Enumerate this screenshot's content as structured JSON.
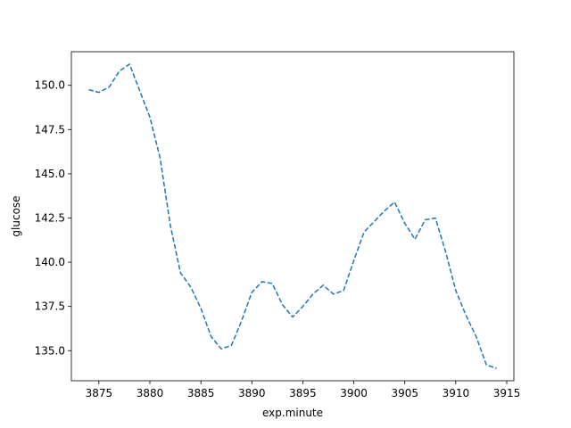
{
  "chart_data": {
    "type": "line",
    "title": "",
    "xlabel": "exp.minute",
    "ylabel": "glucose",
    "xlim": [
      3872.3,
      3915.7
    ],
    "ylim": [
      133.3,
      151.9
    ],
    "x_ticks": [
      3875,
      3880,
      3885,
      3890,
      3895,
      3900,
      3905,
      3910,
      3915
    ],
    "x_tick_labels": [
      "3875",
      "3880",
      "3885",
      "3890",
      "3895",
      "3900",
      "3905",
      "3910",
      "3915"
    ],
    "y_ticks": [
      135.0,
      137.5,
      140.0,
      142.5,
      145.0,
      147.5,
      150.0
    ],
    "y_tick_labels": [
      "135.0",
      "137.5",
      "140.0",
      "142.5",
      "145.0",
      "147.5",
      "150.0"
    ],
    "grid": false,
    "legend": "none",
    "series": [
      {
        "color": "#1f77b4",
        "line_style": "dashed",
        "x": [
          3874,
          3875,
          3876,
          3877,
          3878,
          3879,
          3880,
          3881,
          3882,
          3883,
          3884,
          3885,
          3886,
          3887,
          3888,
          3889,
          3890,
          3891,
          3892,
          3893,
          3894,
          3895,
          3896,
          3897,
          3898,
          3899,
          3900,
          3901,
          3902,
          3903,
          3904,
          3905,
          3906,
          3907,
          3908,
          3909,
          3910,
          3911,
          3912,
          3913,
          3914
        ],
        "y": [
          149.75,
          149.6,
          149.9,
          150.8,
          151.2,
          149.7,
          148.2,
          145.9,
          142.1,
          139.4,
          138.6,
          137.4,
          135.8,
          135.1,
          135.3,
          136.7,
          138.3,
          138.9,
          138.8,
          137.6,
          136.9,
          137.5,
          138.2,
          138.7,
          138.2,
          138.4,
          140.1,
          141.7,
          142.3,
          142.9,
          143.4,
          142.2,
          141.3,
          142.4,
          142.5,
          140.6,
          138.4,
          137.0,
          135.8,
          134.2,
          134.0
        ]
      }
    ]
  }
}
